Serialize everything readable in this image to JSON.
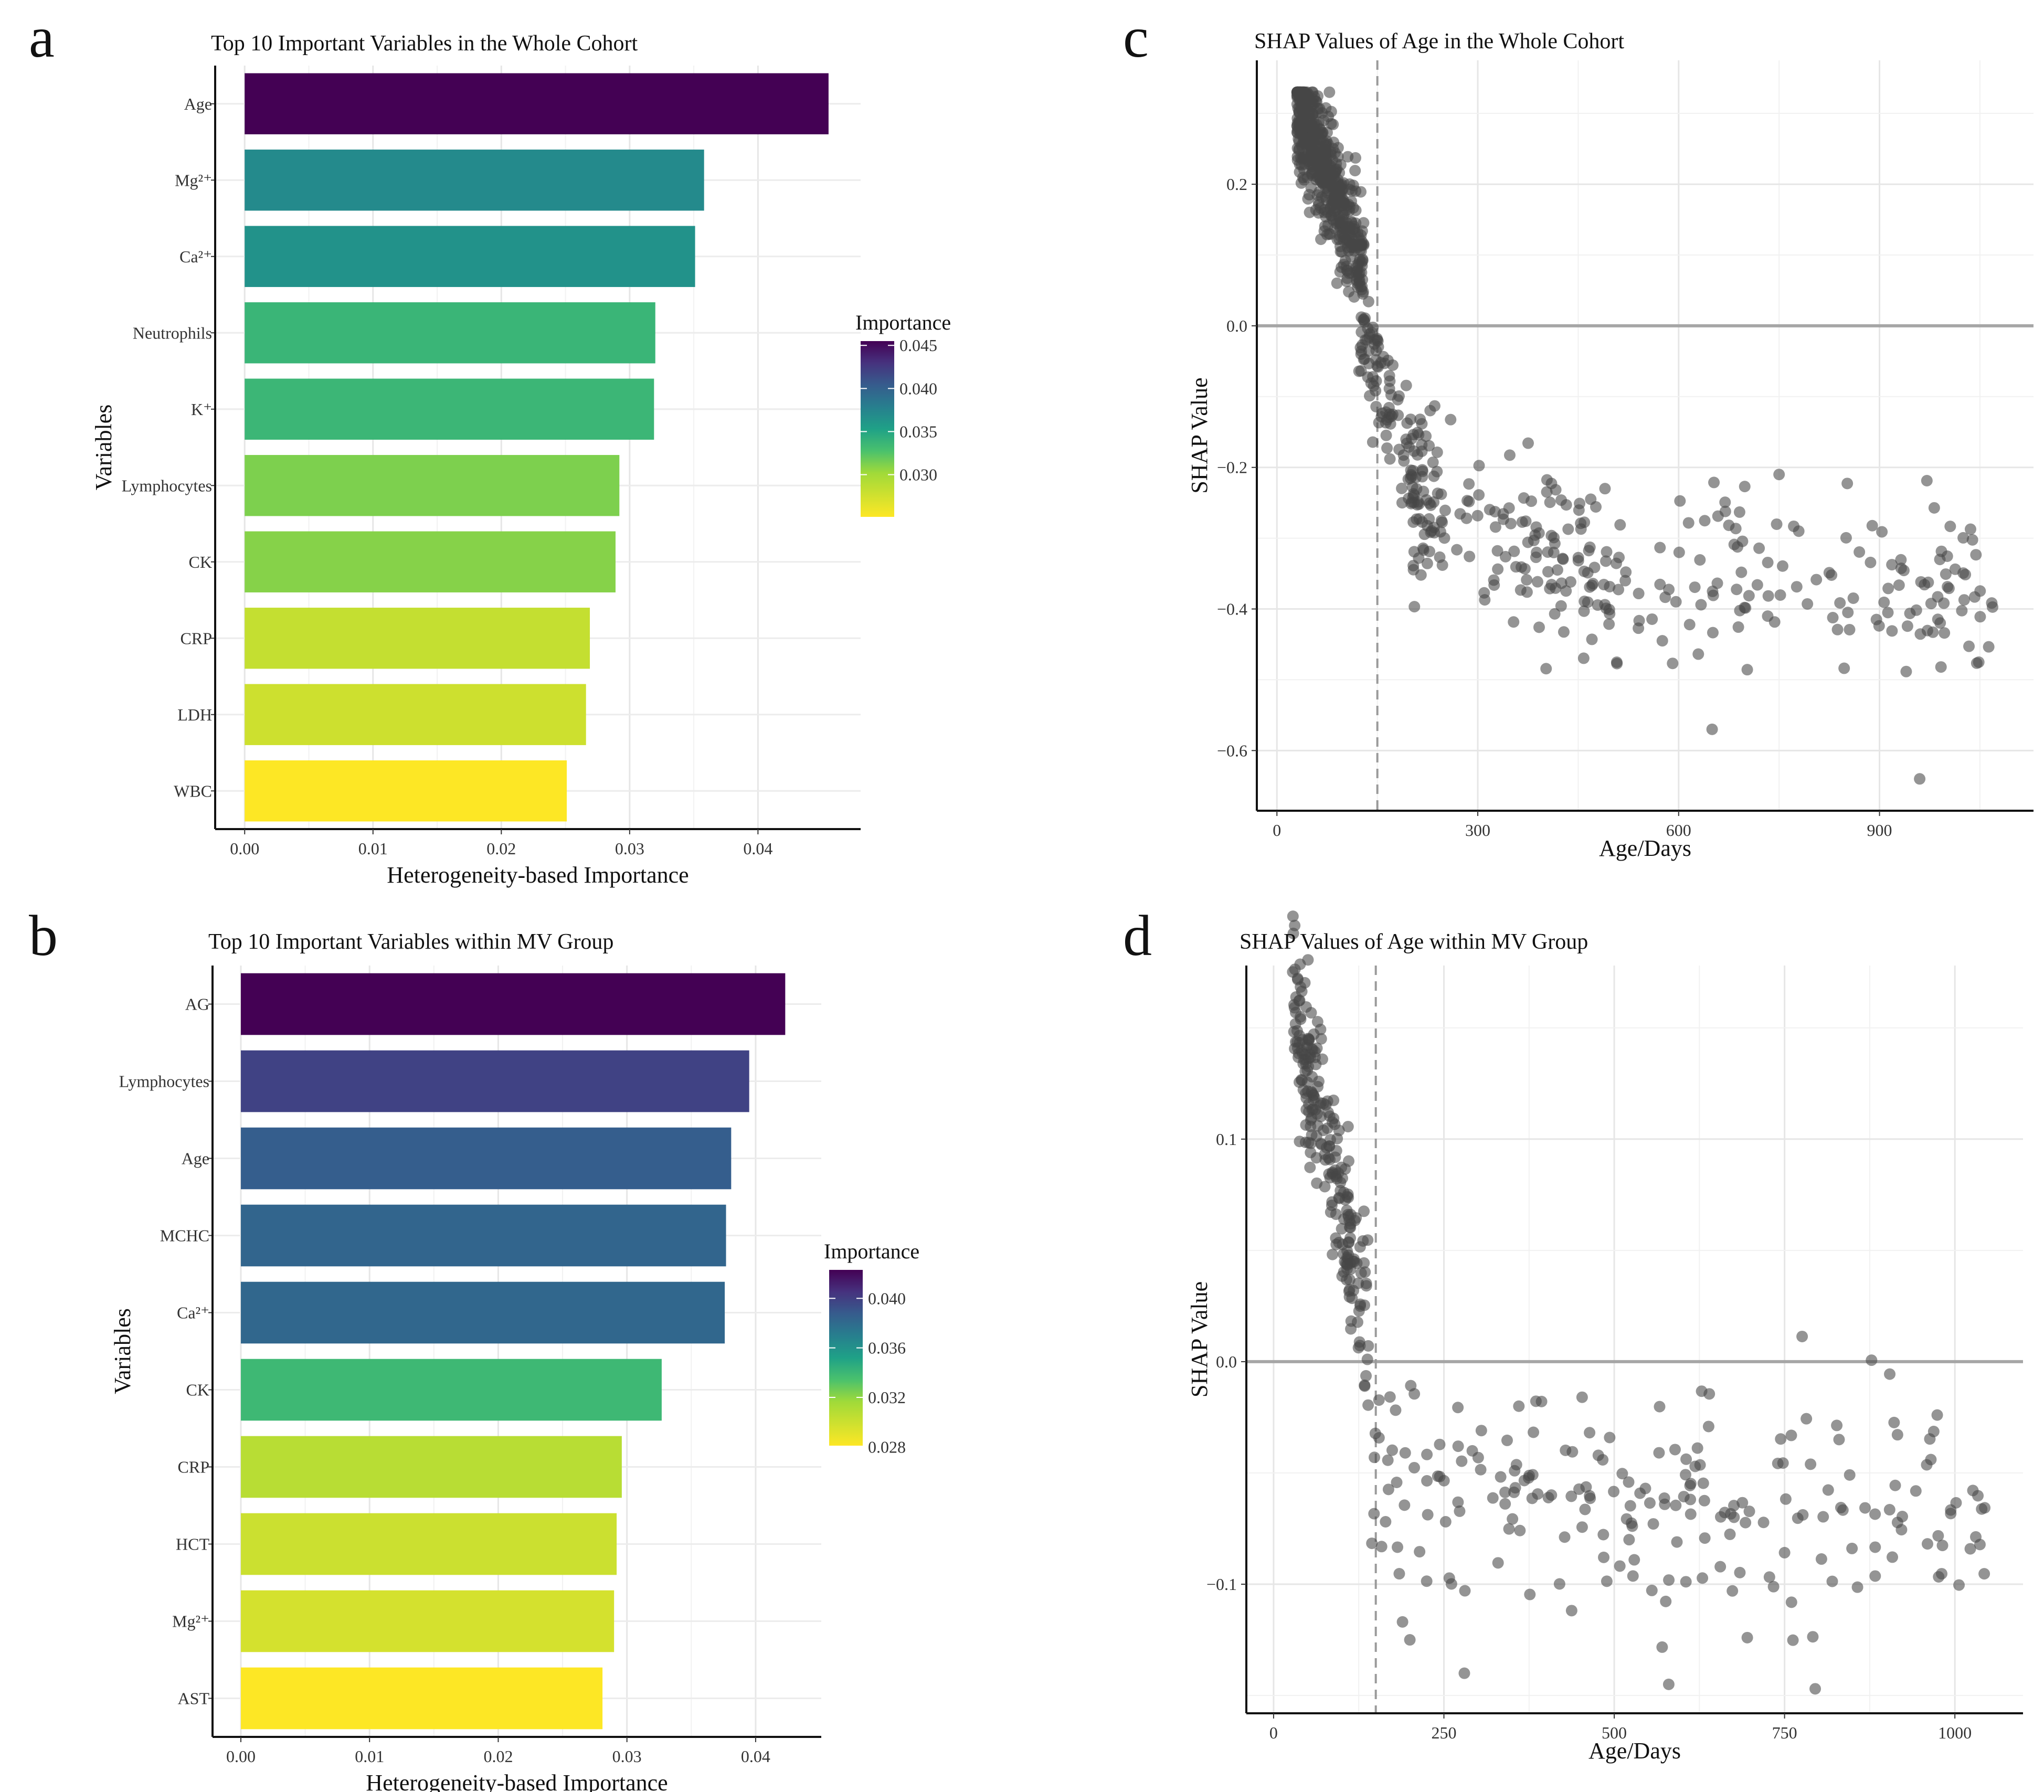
{
  "panels": {
    "a": {
      "letter": "a"
    },
    "b": {
      "letter": "b"
    },
    "c": {
      "letter": "c"
    },
    "d": {
      "letter": "d"
    }
  },
  "chart_data": [
    {
      "id": "a",
      "type": "bar",
      "orientation": "horizontal",
      "title": "Top 10 Important Variables in the Whole Cohort",
      "xlabel": "Heterogeneity-based Importance",
      "ylabel": "Variables",
      "categories": [
        "Age",
        "Mg²⁺",
        "Ca²⁺",
        "Neutrophils",
        "K⁺",
        "Lymphocytes",
        "CK",
        "CRP",
        "LDH",
        "WBC"
      ],
      "values": [
        0.0455,
        0.0358,
        0.0351,
        0.032,
        0.0319,
        0.0292,
        0.0289,
        0.0269,
        0.0266,
        0.0251
      ],
      "xlim": [
        -0.0023,
        0.048
      ],
      "xticks": [
        0.0,
        0.01,
        0.02,
        0.03,
        0.04
      ],
      "xtick_labels": [
        "0.00",
        "0.01",
        "0.02",
        "0.03",
        "0.04"
      ],
      "grid": true,
      "legend": {
        "title": "Importance",
        "position": "right",
        "colormap": "viridis",
        "range": [
          0.0251,
          0.0455
        ],
        "ticks": [
          0.045,
          0.04,
          0.035,
          0.03
        ],
        "tick_labels": [
          "0.045",
          "0.040",
          "0.035",
          "0.030"
        ]
      }
    },
    {
      "id": "b",
      "type": "bar",
      "orientation": "horizontal",
      "title": "Top 10 Important Variables within MV Group",
      "xlabel": "Heterogeneity-based Importance",
      "ylabel": "Variables",
      "categories": [
        "AG",
        "Lymphocytes",
        "Age",
        "MCHC",
        "Ca²⁺",
        "CK",
        "CRP",
        "HCT",
        "Mg²⁺",
        "AST"
      ],
      "values": [
        0.0423,
        0.0395,
        0.0381,
        0.0377,
        0.0376,
        0.0327,
        0.0296,
        0.0292,
        0.029,
        0.0281
      ],
      "xlim": [
        -0.0022,
        0.0451
      ],
      "xticks": [
        0.0,
        0.01,
        0.02,
        0.03,
        0.04
      ],
      "xtick_labels": [
        "0.00",
        "0.01",
        "0.02",
        "0.03",
        "0.04"
      ],
      "grid": true,
      "legend": {
        "title": "Importance",
        "position": "right",
        "colormap": "viridis",
        "range": [
          0.0281,
          0.0423
        ],
        "ticks": [
          0.04,
          0.036,
          0.032,
          0.028
        ],
        "tick_labels": [
          "0.040",
          "0.036",
          "0.032",
          "0.028"
        ]
      }
    },
    {
      "id": "c",
      "type": "scatter",
      "title": "SHAP Values of Age in the Whole Cohort",
      "xlabel": "Age/Days",
      "ylabel": "SHAP Value",
      "xlim": [
        -30,
        1130
      ],
      "ylim": [
        -0.685,
        0.375
      ],
      "xticks": [
        0,
        300,
        600,
        900
      ],
      "xtick_labels": [
        "0",
        "300",
        "600",
        "900"
      ],
      "yticks": [
        0.2,
        0.0,
        -0.2,
        -0.4,
        -0.6
      ],
      "ytick_labels": [
        "0.2",
        "0.0",
        "−0.2",
        "−0.4",
        "−0.6"
      ],
      "hline": 0.0,
      "vline": 150,
      "grid": true,
      "points_description": "Dense cluster of about 1400 points at ages 25-120 days with SHAP 0.0 to 0.32, steep decline to about -0.25 near 200 days, then scattered points plateauing around -0.3 to -0.45 up to about 1070 days; outliers near (650, -0.57) and (960, -0.64)."
    },
    {
      "id": "d",
      "type": "scatter",
      "title": "SHAP Values of Age within MV Group",
      "xlabel": "Age/Days",
      "ylabel": "SHAP Value",
      "xlim": [
        -40,
        1100
      ],
      "ylim": [
        -0.158,
        0.178
      ],
      "xticks": [
        0,
        250,
        500,
        750,
        1000
      ],
      "xtick_labels": [
        "0",
        "250",
        "500",
        "750",
        "1000"
      ],
      "yticks": [
        0.1,
        0.0,
        -0.1
      ],
      "ytick_labels": [
        "0.1",
        "0.0",
        "−0.1"
      ],
      "hline": 0.0,
      "vline": 150,
      "grid": true,
      "points_description": "Cluster of points at ages 25-140 days falling from about 0.17 to 0.0, then scattered points between -0.02 and -0.15 from 150 to 1050 days, mostly around -0.05 to -0.1."
    }
  ]
}
